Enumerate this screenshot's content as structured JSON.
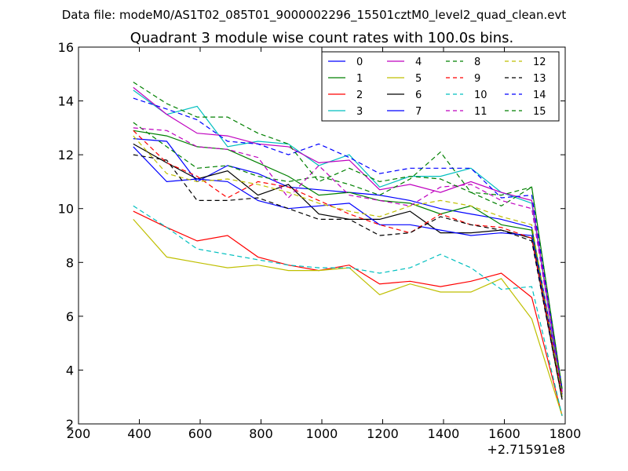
{
  "chart_data": {
    "type": "line",
    "suptitle": "Data file: modeM0/AS1T02_085T01_9000002296_15501cztM0_level2_quad_clean.evt",
    "title": "Quadrant 3 module wise count rates with 100.0s bins.",
    "xlabel": "",
    "ylabel": "",
    "xlim": [
      200,
      1800
    ],
    "ylim": [
      2,
      16
    ],
    "x_ticks": [
      "200",
      "400",
      "600",
      "800",
      "1000",
      "1200",
      "1400",
      "1600",
      "1800"
    ],
    "y_ticks": [
      "2",
      "4",
      "6",
      "8",
      "10",
      "12",
      "14",
      "16"
    ],
    "x_offset_label": "+2.71591e8",
    "grid": false,
    "legend": {
      "placement": "top-right",
      "columns": 4
    },
    "x": [
      380,
      490,
      590,
      690,
      790,
      890,
      990,
      1090,
      1190,
      1290,
      1390,
      1490,
      1590,
      1690,
      1790
    ],
    "series": [
      {
        "name": "0",
        "color": "#0000ff",
        "dash": false,
        "values": [
          12.6,
          12.5,
          11.0,
          11.6,
          11.3,
          10.8,
          10.7,
          10.6,
          10.5,
          10.3,
          10.0,
          9.8,
          9.6,
          9.3,
          3.2
        ]
      },
      {
        "name": "1",
        "color": "#008000",
        "dash": false,
        "values": [
          12.9,
          12.7,
          12.3,
          12.2,
          11.7,
          11.2,
          10.5,
          10.6,
          10.3,
          10.2,
          9.8,
          10.1,
          9.4,
          9.2,
          3.0
        ]
      },
      {
        "name": "2",
        "color": "#ff0000",
        "dash": false,
        "values": [
          9.9,
          9.3,
          8.8,
          9.0,
          8.2,
          7.9,
          7.7,
          7.9,
          7.2,
          7.3,
          7.1,
          7.3,
          7.6,
          6.7,
          2.3
        ]
      },
      {
        "name": "3",
        "color": "#00bfbf",
        "dash": false,
        "values": [
          14.4,
          13.5,
          13.8,
          12.3,
          12.5,
          12.4,
          11.6,
          12.0,
          10.8,
          11.2,
          11.2,
          11.5,
          10.6,
          10.2,
          3.1
        ]
      },
      {
        "name": "4",
        "color": "#bf00bf",
        "dash": false,
        "values": [
          14.5,
          13.5,
          12.8,
          12.7,
          12.4,
          12.3,
          11.7,
          11.8,
          10.7,
          10.9,
          10.6,
          11.0,
          10.6,
          10.3,
          3.2
        ]
      },
      {
        "name": "5",
        "color": "#bfbf00",
        "dash": false,
        "values": [
          9.6,
          8.2,
          8.0,
          7.8,
          7.9,
          7.7,
          7.7,
          7.8,
          6.8,
          7.2,
          6.9,
          6.9,
          7.4,
          5.9,
          2.3
        ]
      },
      {
        "name": "6",
        "color": "#000000",
        "dash": false,
        "values": [
          12.4,
          11.7,
          11.1,
          11.4,
          10.5,
          10.9,
          9.8,
          9.6,
          9.6,
          9.9,
          9.1,
          9.1,
          9.2,
          8.9,
          2.9
        ]
      },
      {
        "name": "7",
        "color": "#0000ff",
        "dash": false,
        "values": [
          12.3,
          11.0,
          11.1,
          11.0,
          10.3,
          10.0,
          10.1,
          10.2,
          9.4,
          9.4,
          9.2,
          9.0,
          9.1,
          9.0,
          3.1
        ]
      },
      {
        "name": "8",
        "color": "#008000",
        "dash": true,
        "values": [
          13.2,
          12.3,
          11.5,
          11.6,
          11.2,
          11.0,
          11.2,
          10.9,
          10.5,
          11.1,
          12.1,
          10.6,
          10.1,
          10.8,
          3.3
        ]
      },
      {
        "name": "9",
        "color": "#ff0000",
        "dash": true,
        "values": [
          12.9,
          11.7,
          11.2,
          10.4,
          11.0,
          10.8,
          10.3,
          9.8,
          9.4,
          9.1,
          9.8,
          9.4,
          9.3,
          8.9,
          3.1
        ]
      },
      {
        "name": "10",
        "color": "#00bfbf",
        "dash": true,
        "values": [
          10.1,
          9.3,
          8.5,
          8.3,
          8.1,
          7.9,
          7.8,
          7.8,
          7.6,
          7.8,
          8.3,
          7.8,
          7.0,
          7.1,
          2.3
        ]
      },
      {
        "name": "11",
        "color": "#bf00bf",
        "dash": true,
        "values": [
          13.0,
          12.9,
          12.3,
          12.2,
          11.9,
          10.4,
          11.6,
          10.5,
          10.3,
          10.1,
          10.8,
          10.9,
          10.3,
          10.0,
          3.2
        ]
      },
      {
        "name": "12",
        "color": "#bfbf00",
        "dash": true,
        "values": [
          12.7,
          11.3,
          11.0,
          11.1,
          10.9,
          10.6,
          10.2,
          9.9,
          9.7,
          10.1,
          10.3,
          10.1,
          9.7,
          9.4,
          3.0
        ]
      },
      {
        "name": "13",
        "color": "#000000",
        "dash": true,
        "values": [
          12.0,
          11.8,
          10.3,
          10.3,
          10.4,
          10.0,
          9.6,
          9.6,
          9.0,
          9.1,
          9.7,
          9.4,
          9.2,
          8.8,
          2.9
        ]
      },
      {
        "name": "14",
        "color": "#0000ff",
        "dash": true,
        "values": [
          14.1,
          13.7,
          13.3,
          12.5,
          12.4,
          12.0,
          12.4,
          11.9,
          11.3,
          11.5,
          11.5,
          11.5,
          10.4,
          10.5,
          3.3
        ]
      },
      {
        "name": "15",
        "color": "#008000",
        "dash": true,
        "values": [
          14.7,
          13.9,
          13.4,
          13.4,
          12.8,
          12.4,
          11.0,
          11.5,
          11.0,
          11.2,
          11.1,
          10.6,
          10.5,
          10.8,
          3.3
        ]
      }
    ]
  }
}
